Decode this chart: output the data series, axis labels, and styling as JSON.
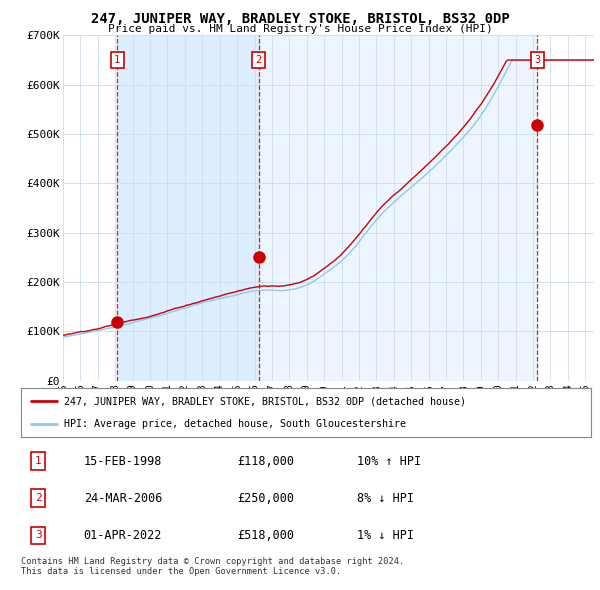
{
  "title": "247, JUNIPER WAY, BRADLEY STOKE, BRISTOL, BS32 0DP",
  "subtitle": "Price paid vs. HM Land Registry's House Price Index (HPI)",
  "ylim": [
    0,
    700000
  ],
  "yticks": [
    0,
    100000,
    200000,
    300000,
    400000,
    500000,
    600000,
    700000
  ],
  "ytick_labels": [
    "£0",
    "£100K",
    "£200K",
    "£300K",
    "£400K",
    "£500K",
    "£600K",
    "£700K"
  ],
  "sale_year_floats": [
    1998.12,
    2006.23,
    2022.25
  ],
  "sale_prices": [
    118000,
    250000,
    518000
  ],
  "sale_labels": [
    "1",
    "2",
    "3"
  ],
  "sale_color": "#cc0000",
  "hpi_color": "#90c8f0",
  "shade_color": "#ddeeff",
  "legend_sale": "247, JUNIPER WAY, BRADLEY STOKE, BRISTOL, BS32 0DP (detached house)",
  "legend_hpi": "HPI: Average price, detached house, South Gloucestershire",
  "table_rows": [
    {
      "num": "1",
      "date": "15-FEB-1998",
      "price": "£118,000",
      "hpi": "10% ↑ HPI"
    },
    {
      "num": "2",
      "date": "24-MAR-2006",
      "price": "£250,000",
      "hpi": "8% ↓ HPI"
    },
    {
      "num": "3",
      "date": "01-APR-2022",
      "price": "£518,000",
      "hpi": "1% ↓ HPI"
    }
  ],
  "footer": "Contains HM Land Registry data © Crown copyright and database right 2024.\nThis data is licensed under the Open Government Licence v3.0.",
  "bg_color": "#ffffff",
  "grid_color": "#ccddee",
  "vline_color": "#cc0000"
}
